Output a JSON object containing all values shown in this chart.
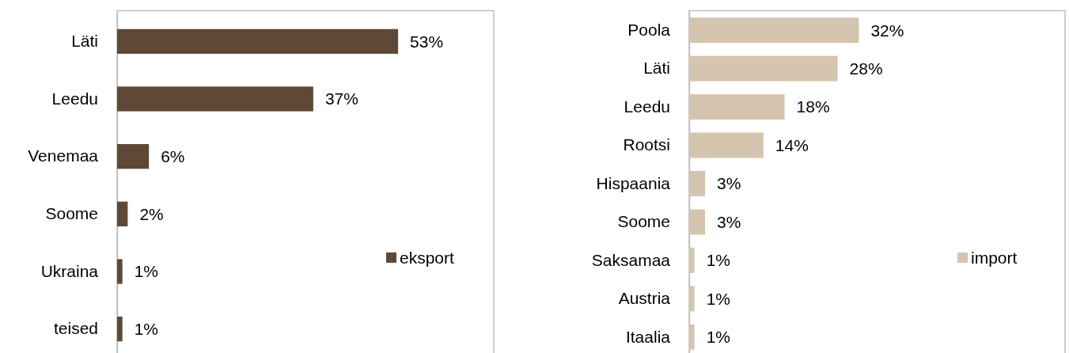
{
  "chart_data": [
    {
      "type": "bar",
      "orientation": "horizontal",
      "categories": [
        "Läti",
        "Leedu",
        "Venemaa",
        "Soome",
        "Ukraina",
        "teised"
      ],
      "series": [
        {
          "name": "eksport",
          "color": "#5e4936",
          "values": [
            53,
            37,
            6,
            2,
            1,
            1
          ],
          "value_labels": [
            "53%",
            "37%",
            "6%",
            "2%",
            "1%",
            "1%"
          ]
        }
      ],
      "legend": "right",
      "grid": false
    },
    {
      "type": "bar",
      "orientation": "horizontal",
      "categories": [
        "Poola",
        "Läti",
        "Leedu",
        "Rootsi",
        "Hispaania",
        "Soome",
        "Saksamaa",
        "Austria",
        "Itaalia"
      ],
      "series": [
        {
          "name": "import",
          "color": "#d6c5ae",
          "values": [
            32,
            28,
            18,
            14,
            3,
            3,
            1,
            1,
            1
          ],
          "value_labels": [
            "32%",
            "28%",
            "18%",
            "14%",
            "3%",
            "3%",
            "1%",
            "1%",
            "1%"
          ]
        }
      ],
      "legend": "right",
      "grid": false
    }
  ]
}
